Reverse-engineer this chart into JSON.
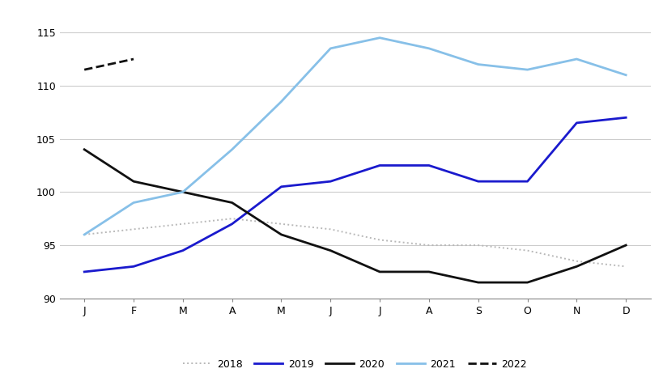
{
  "months": [
    "J",
    "F",
    "M",
    "A",
    "M",
    "J",
    "J",
    "A",
    "S",
    "O",
    "N",
    "D"
  ],
  "series_2018": [
    96.0,
    96.5,
    97.0,
    97.5,
    97.0,
    96.5,
    95.5,
    95.0,
    95.0,
    94.5,
    93.5,
    93.0
  ],
  "series_2019": [
    92.5,
    93.0,
    94.5,
    97.0,
    100.5,
    101.0,
    102.5,
    102.5,
    101.0,
    101.0,
    106.5,
    107.0
  ],
  "series_2020": [
    104.0,
    101.0,
    100.0,
    99.0,
    96.0,
    94.5,
    92.5,
    92.5,
    91.5,
    91.5,
    93.0,
    95.0
  ],
  "series_2021": [
    96.0,
    99.0,
    100.0,
    104.0,
    108.5,
    113.5,
    114.5,
    113.5,
    112.0,
    111.5,
    112.5,
    111.0
  ],
  "series_2022": [
    111.5,
    112.5
  ],
  "color_2018": "#b8b8b8",
  "color_2019": "#1a1acd",
  "color_2020": "#111111",
  "color_2021": "#87c0e8",
  "color_2022": "#111111",
  "ylim": [
    90,
    117
  ],
  "yticks": [
    90,
    95,
    100,
    105,
    110,
    115
  ],
  "background_color": "#ffffff",
  "legend_labels": [
    "2018",
    "2019",
    "2020",
    "2021",
    "2022"
  ]
}
